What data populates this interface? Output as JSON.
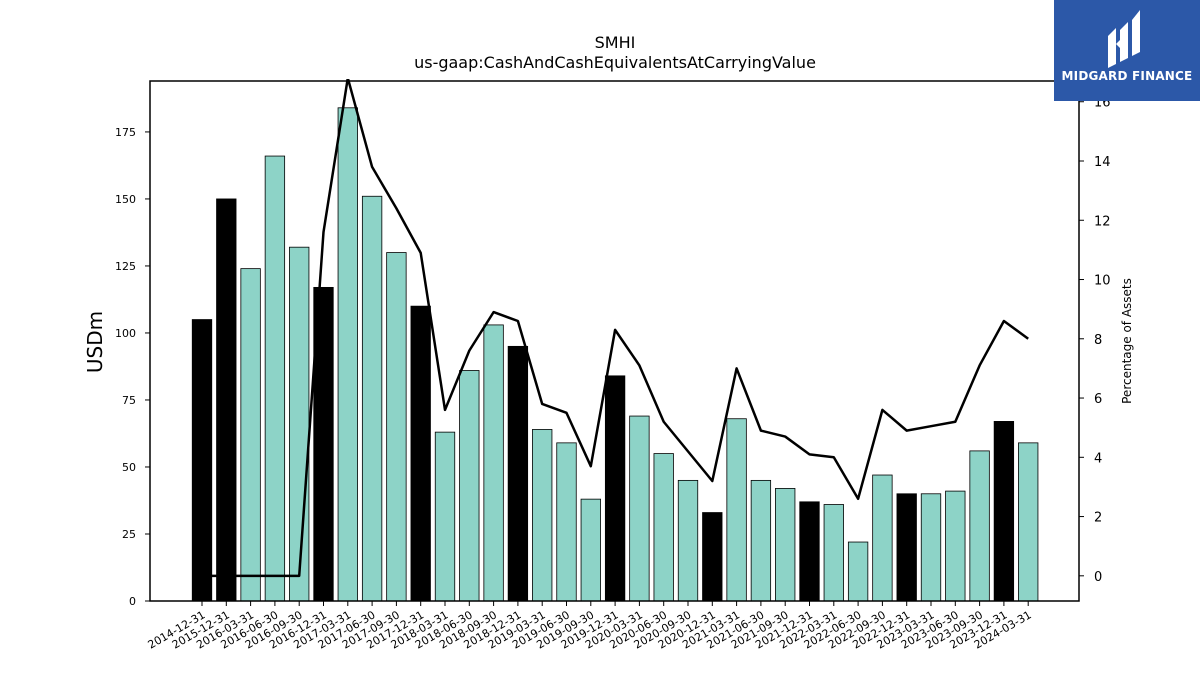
{
  "chart_data": {
    "type": "bar",
    "title": "SMHI",
    "subtitle": "us-gaap:CashAndCashEquivalentsAtCarryingValue",
    "ylabel": "USDm",
    "y2label": "Percentage of Assets",
    "ylim": [
      0,
      194
    ],
    "y2lim": [
      -0.85,
      16.7
    ],
    "yticks": [
      0,
      25,
      50,
      75,
      100,
      125,
      150,
      175
    ],
    "y2ticks": [
      0,
      2,
      4,
      6,
      8,
      10,
      12,
      14,
      16
    ],
    "grid": false,
    "categories": [
      "2014-12-31",
      "2015-12-31",
      "2016-03-31",
      "2016-06-30",
      "2016-09-30",
      "2016-12-31",
      "2017-03-31",
      "2017-06-30",
      "2017-09-30",
      "2017-12-31",
      "2018-03-31",
      "2018-06-30",
      "2018-09-30",
      "2018-12-31",
      "2019-03-31",
      "2019-06-30",
      "2019-09-30",
      "2019-12-31",
      "2020-03-31",
      "2020-06-30",
      "2020-09-30",
      "2020-12-31",
      "2021-03-31",
      "2021-06-30",
      "2021-09-30",
      "2021-12-31",
      "2022-03-31",
      "2022-06-30",
      "2022-09-30",
      "2022-12-31",
      "2023-03-31",
      "2023-06-30",
      "2023-09-30",
      "2023-12-31",
      "2024-03-31"
    ],
    "series": [
      {
        "kind": "bar",
        "values": [
          105,
          150,
          124,
          166,
          132,
          117,
          184,
          151,
          130,
          110,
          63,
          86,
          103,
          95,
          64,
          59,
          38,
          84,
          69,
          55,
          45,
          33,
          68,
          45,
          42,
          37,
          36,
          22,
          47,
          40,
          40,
          41,
          56,
          67,
          59
        ],
        "highlight": [
          true,
          true,
          false,
          false,
          false,
          true,
          false,
          false,
          false,
          true,
          false,
          false,
          false,
          true,
          false,
          false,
          false,
          true,
          false,
          false,
          false,
          true,
          false,
          false,
          false,
          true,
          false,
          false,
          false,
          true,
          false,
          false,
          false,
          true,
          false
        ]
      },
      {
        "kind": "line",
        "axis": "right",
        "values": [
          0,
          0,
          0,
          0,
          0,
          11.6,
          16.8,
          13.8,
          12.4,
          10.9,
          5.6,
          7.6,
          8.9,
          8.6,
          5.8,
          5.5,
          3.7,
          8.3,
          7.1,
          5.2,
          4.2,
          3.2,
          7.0,
          4.9,
          4.7,
          4.1,
          4.0,
          2.6,
          5.6,
          4.9,
          5.05,
          5.2,
          7.1,
          8.6,
          8.0
        ]
      }
    ],
    "colors": {
      "bar_highlight": "#000000",
      "bar_normal": "#8dd3c7",
      "bar_edge": "#000000",
      "line": "#000000"
    }
  },
  "logo": {
    "text": "MIDGARD FINANCE",
    "background": "#2c58a8",
    "icon": "midgard-logo-icon"
  }
}
